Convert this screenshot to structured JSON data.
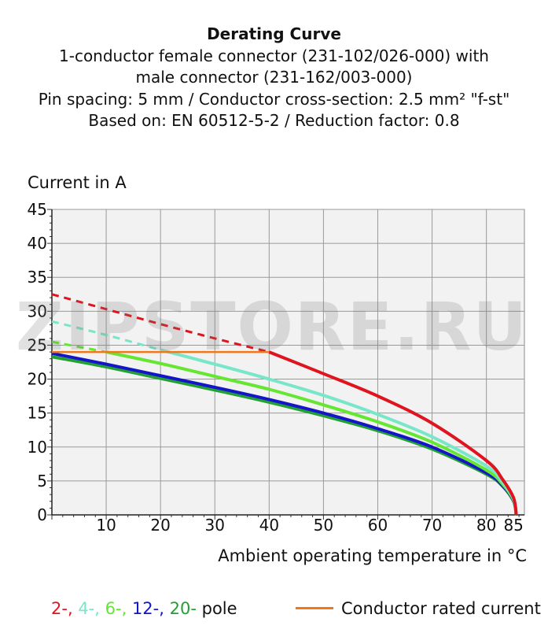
{
  "chart_data": {
    "type": "line",
    "title": "Derating Curve",
    "subtitle_lines": [
      "1-conductor female connector (231-102/026-000) with",
      "male connector (231-162/003-000)",
      "Pin spacing: 5 mm / Conductor cross-section: 2.5 mm² \"f-st\"",
      "Based on: EN 60512-5-2 / Reduction factor: 0.8"
    ],
    "ylabel": "Current in A",
    "xlabel": "Ambient operating temperature in °C",
    "xlim": [
      0,
      87
    ],
    "ylim": [
      0,
      45
    ],
    "x_ticks": [
      10,
      20,
      30,
      40,
      50,
      60,
      70,
      80,
      85
    ],
    "y_ticks": [
      0,
      5,
      10,
      15,
      20,
      25,
      30,
      35,
      40,
      45
    ],
    "grid": true,
    "legend": {
      "poles_labels": [
        "2-,",
        "4-,",
        "6-,",
        "12-,",
        "20-"
      ],
      "poles_suffix": "pole",
      "rated_label": "Conductor rated current"
    },
    "series": [
      {
        "name": "2-",
        "color": "#e0141e",
        "dashed_until": 40,
        "x": [
          0,
          10,
          20,
          30,
          40,
          50,
          60,
          70,
          80,
          83,
          85,
          85.5
        ],
        "y": [
          32.5,
          30.3,
          28.1,
          26.0,
          24.0,
          20.8,
          17.5,
          13.5,
          8.0,
          5.2,
          2.5,
          0
        ]
      },
      {
        "name": "4-",
        "color": "#78e6c8",
        "dashed_until": 20,
        "x": [
          0,
          10,
          20,
          30,
          40,
          50,
          60,
          70,
          80,
          83,
          85,
          85.5
        ],
        "y": [
          28.5,
          26.5,
          24.3,
          22.2,
          20.0,
          17.6,
          14.8,
          11.5,
          7.2,
          4.8,
          2.3,
          0
        ]
      },
      {
        "name": "6-",
        "color": "#64e632",
        "dashed_until": 10,
        "x": [
          0,
          10,
          20,
          30,
          40,
          50,
          60,
          70,
          80,
          83,
          85,
          85.5
        ],
        "y": [
          25.5,
          24.0,
          22.3,
          20.4,
          18.5,
          16.2,
          13.7,
          10.7,
          6.6,
          4.5,
          2.2,
          0
        ]
      },
      {
        "name": "12-",
        "color": "#1414c8",
        "dashed_until": 0,
        "x": [
          0,
          10,
          20,
          30,
          40,
          50,
          60,
          70,
          80,
          83,
          85,
          85.5
        ],
        "y": [
          23.8,
          22.2,
          20.5,
          18.8,
          17.0,
          15.0,
          12.7,
          10.0,
          6.2,
          4.3,
          2.1,
          0
        ]
      },
      {
        "name": "20-",
        "color": "#22a032",
        "dashed_until": 0,
        "x": [
          0,
          10,
          20,
          30,
          40,
          50,
          60,
          70,
          80,
          83,
          85,
          85.5
        ],
        "y": [
          23.3,
          21.8,
          20.1,
          18.4,
          16.6,
          14.6,
          12.4,
          9.7,
          6.0,
          4.2,
          2.0,
          0
        ]
      }
    ],
    "rated_current": {
      "color": "#f07818",
      "x": [
        0,
        40
      ],
      "y": [
        24,
        24
      ]
    }
  },
  "watermark": "ZIPSTORE.RU"
}
